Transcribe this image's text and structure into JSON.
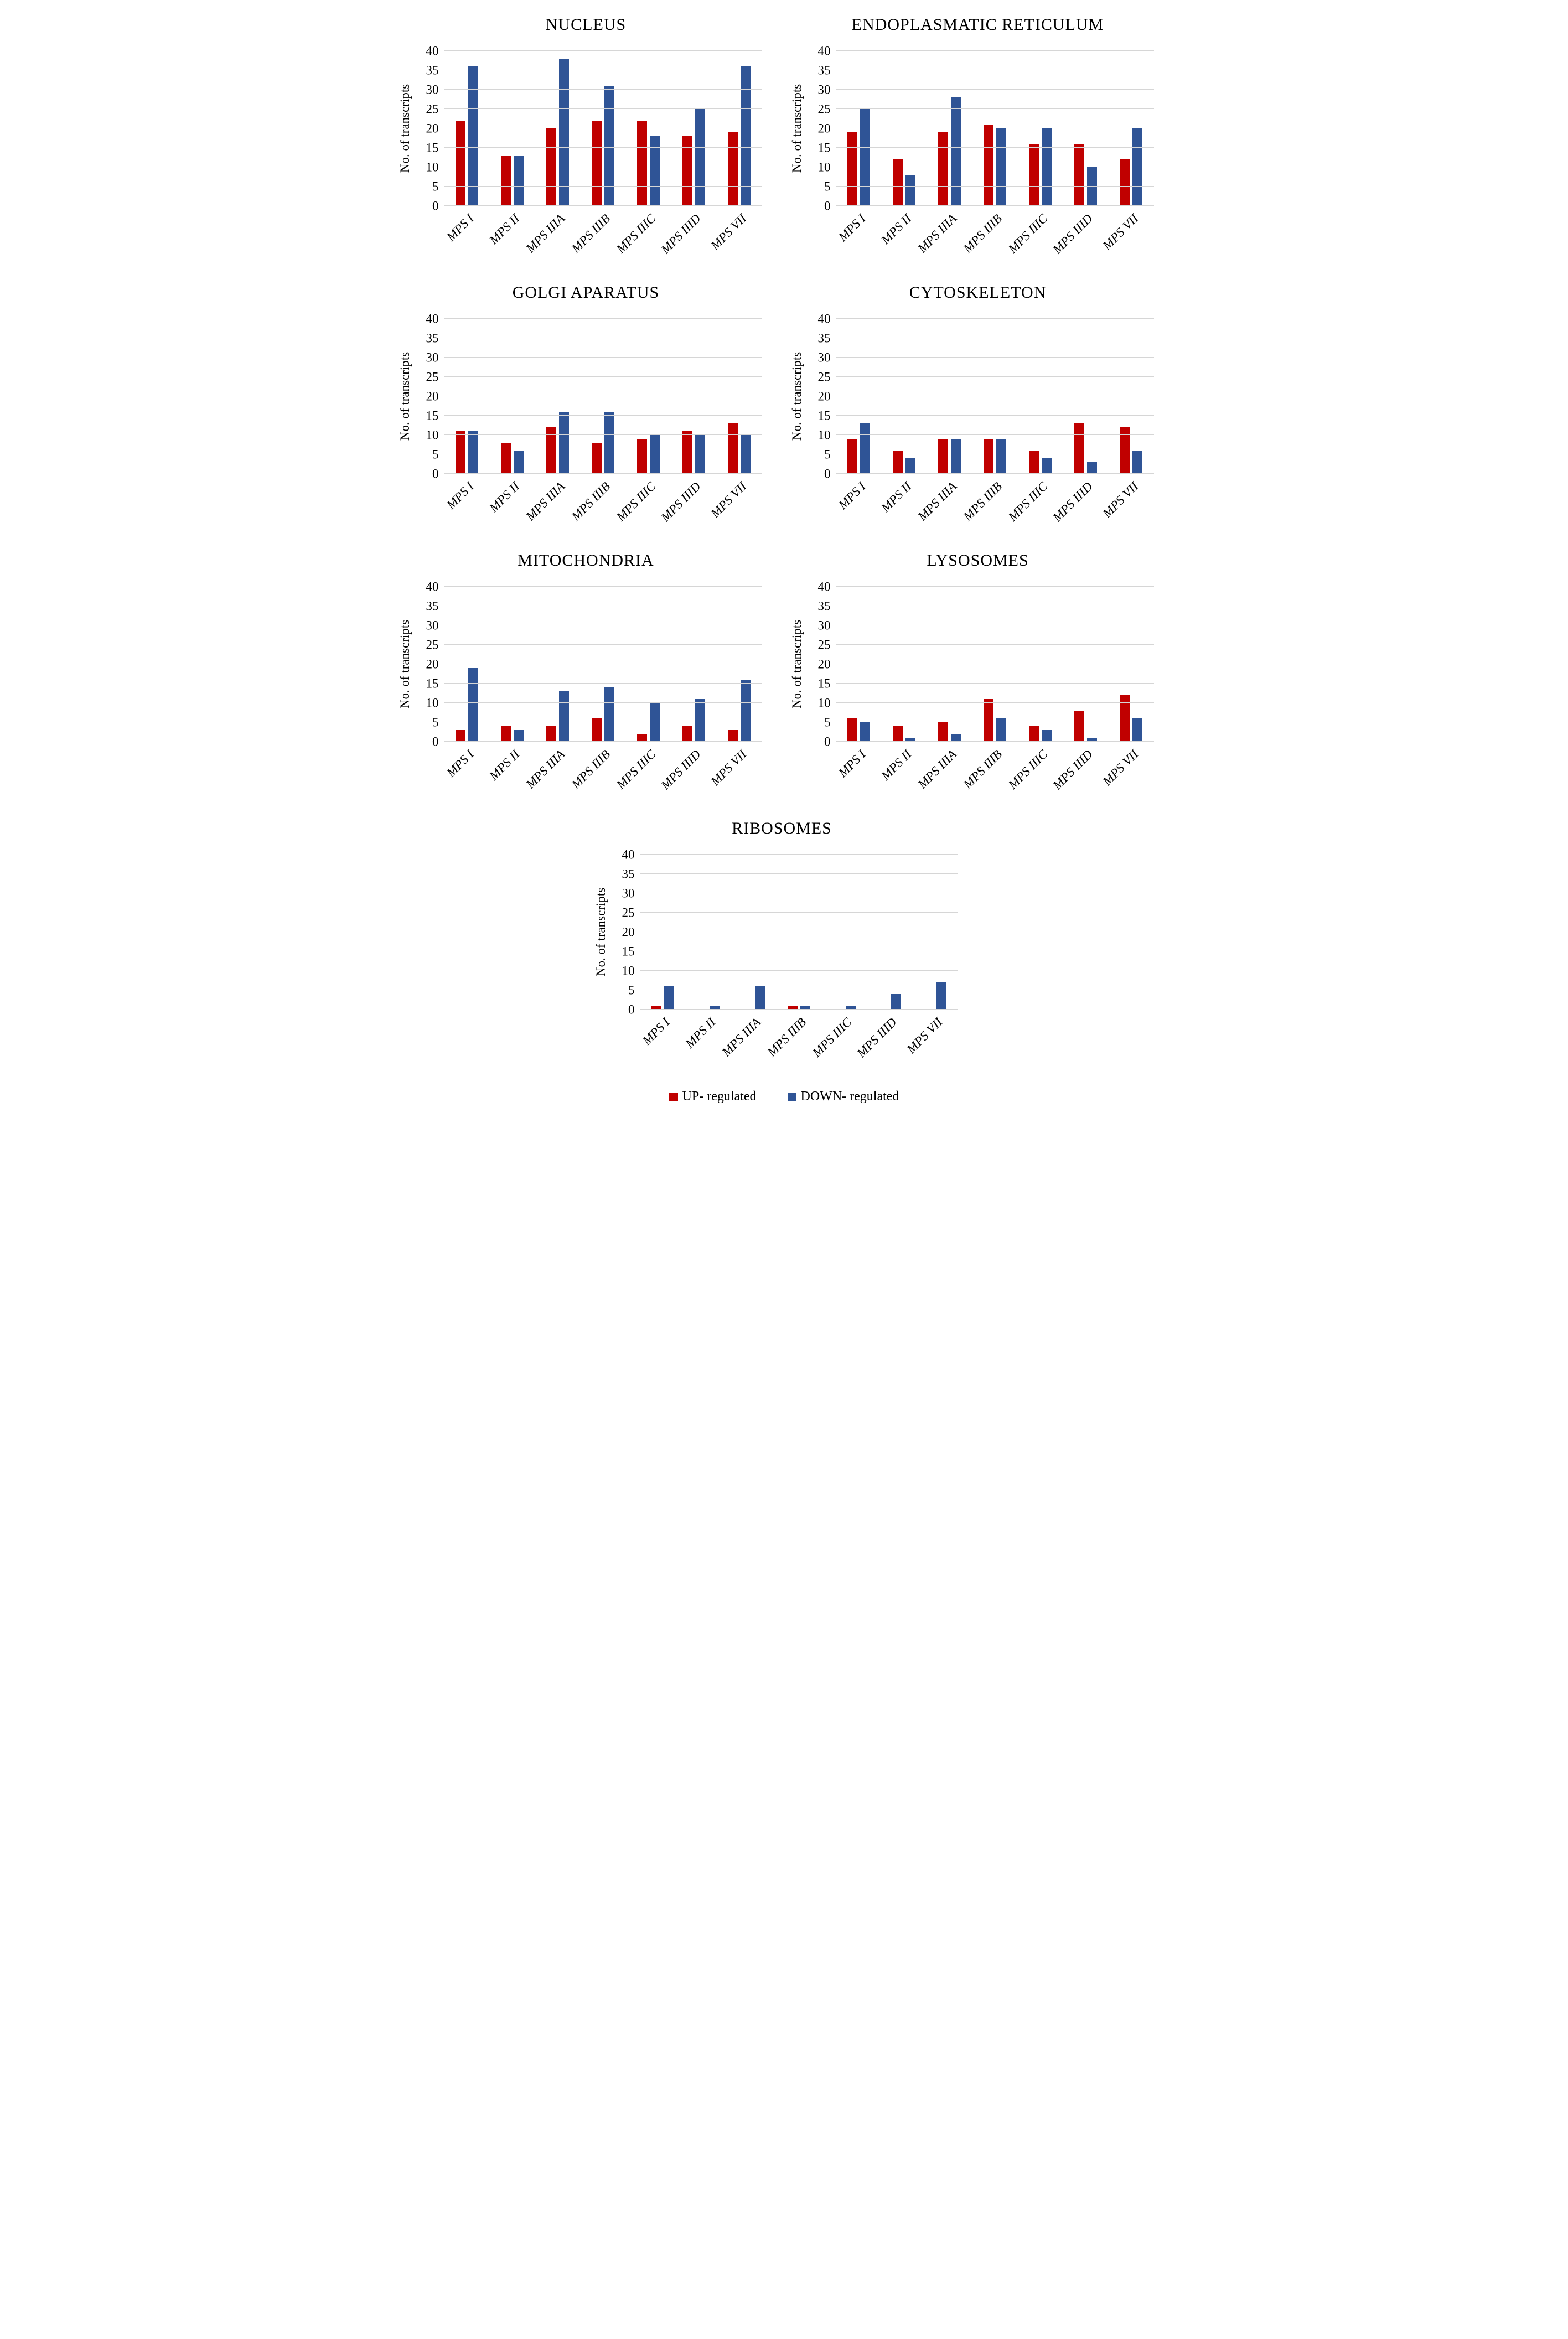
{
  "figure": {
    "legend": {
      "position": "bottom",
      "items": [
        {
          "label": "UP- regulated",
          "key": "up",
          "color": "#C00000"
        },
        {
          "label": "DOWN- regulated",
          "key": "down",
          "color": "#2F5496"
        }
      ]
    }
  },
  "chart_data": [
    {
      "type": "bar",
      "title": "NUCLEUS",
      "xlabel": "",
      "ylabel": "No. of transcripts",
      "ylim": [
        0,
        40
      ],
      "ytick_step": 5,
      "grid": true,
      "categories": [
        "MPS I",
        "MPS II",
        "MPS IIIA",
        "MPS IIIB",
        "MPS IIIC",
        "MPS IIID",
        "MPS VII"
      ],
      "series": [
        {
          "name": "UP- regulated",
          "key": "up",
          "color": "#C00000",
          "values": [
            22,
            13,
            20,
            22,
            22,
            18,
            19
          ]
        },
        {
          "name": "DOWN- regulated",
          "key": "down",
          "color": "#2F5496",
          "values": [
            36,
            13,
            38,
            31,
            18,
            25,
            36
          ]
        }
      ]
    },
    {
      "type": "bar",
      "title": "ENDOPLASMATIC RETICULUM",
      "xlabel": "",
      "ylabel": "No. of transcripts",
      "ylim": [
        0,
        40
      ],
      "ytick_step": 5,
      "grid": true,
      "categories": [
        "MPS I",
        "MPS II",
        "MPS IIIA",
        "MPS IIIB",
        "MPS IIIC",
        "MPS IIID",
        "MPS VII"
      ],
      "series": [
        {
          "name": "UP- regulated",
          "key": "up",
          "color": "#C00000",
          "values": [
            19,
            12,
            19,
            21,
            16,
            16,
            12
          ]
        },
        {
          "name": "DOWN- regulated",
          "key": "down",
          "color": "#2F5496",
          "values": [
            25,
            8,
            28,
            20,
            20,
            10,
            20
          ]
        }
      ]
    },
    {
      "type": "bar",
      "title": "GOLGI APARATUS",
      "xlabel": "",
      "ylabel": "No. of transcripts",
      "ylim": [
        0,
        40
      ],
      "ytick_step": 5,
      "grid": true,
      "categories": [
        "MPS I",
        "MPS II",
        "MPS IIIA",
        "MPS IIIB",
        "MPS IIIC",
        "MPS IIID",
        "MPS VII"
      ],
      "series": [
        {
          "name": "UP- regulated",
          "key": "up",
          "color": "#C00000",
          "values": [
            11,
            8,
            12,
            8,
            9,
            11,
            13
          ]
        },
        {
          "name": "DOWN- regulated",
          "key": "down",
          "color": "#2F5496",
          "values": [
            11,
            6,
            16,
            16,
            10,
            10,
            10
          ]
        }
      ]
    },
    {
      "type": "bar",
      "title": "CYTOSKELETON",
      "xlabel": "",
      "ylabel": "No. of transcripts",
      "ylim": [
        0,
        40
      ],
      "ytick_step": 5,
      "grid": true,
      "categories": [
        "MPS I",
        "MPS II",
        "MPS IIIA",
        "MPS IIIB",
        "MPS IIIC",
        "MPS IIID",
        "MPS VII"
      ],
      "series": [
        {
          "name": "UP- regulated",
          "key": "up",
          "color": "#C00000",
          "values": [
            9,
            6,
            9,
            9,
            6,
            13,
            12
          ]
        },
        {
          "name": "DOWN- regulated",
          "key": "down",
          "color": "#2F5496",
          "values": [
            13,
            4,
            9,
            9,
            4,
            3,
            6
          ]
        }
      ]
    },
    {
      "type": "bar",
      "title": "MITOCHONDRIA",
      "xlabel": "",
      "ylabel": "No. of transcripts",
      "ylim": [
        0,
        40
      ],
      "ytick_step": 5,
      "grid": true,
      "categories": [
        "MPS I",
        "MPS II",
        "MPS IIIA",
        "MPS IIIB",
        "MPS IIIC",
        "MPS IIID",
        "MPS VII"
      ],
      "series": [
        {
          "name": "UP- regulated",
          "key": "up",
          "color": "#C00000",
          "values": [
            3,
            4,
            4,
            6,
            2,
            4,
            3
          ]
        },
        {
          "name": "DOWN- regulated",
          "key": "down",
          "color": "#2F5496",
          "values": [
            19,
            3,
            13,
            14,
            10,
            11,
            16
          ]
        }
      ]
    },
    {
      "type": "bar",
      "title": "LYSOSOMES",
      "xlabel": "",
      "ylabel": "No. of transcripts",
      "ylim": [
        0,
        40
      ],
      "ytick_step": 5,
      "grid": true,
      "categories": [
        "MPS I",
        "MPS II",
        "MPS IIIA",
        "MPS IIIB",
        "MPS IIIC",
        "MPS IIID",
        "MPS VII"
      ],
      "series": [
        {
          "name": "UP- regulated",
          "key": "up",
          "color": "#C00000",
          "values": [
            6,
            4,
            5,
            11,
            4,
            8,
            12
          ]
        },
        {
          "name": "DOWN- regulated",
          "key": "down",
          "color": "#2F5496",
          "values": [
            5,
            1,
            2,
            6,
            3,
            1,
            6
          ]
        }
      ]
    },
    {
      "type": "bar",
      "title": "RIBOSOMES",
      "xlabel": "",
      "ylabel": "No. of transcripts",
      "ylim": [
        0,
        40
      ],
      "ytick_step": 5,
      "grid": true,
      "categories": [
        "MPS I",
        "MPS II",
        "MPS IIIA",
        "MPS IIIB",
        "MPS IIIC",
        "MPS IIID",
        "MPS VII"
      ],
      "series": [
        {
          "name": "UP- regulated",
          "key": "up",
          "color": "#C00000",
          "values": [
            1,
            0,
            0,
            1,
            0,
            0,
            0
          ]
        },
        {
          "name": "DOWN- regulated",
          "key": "down",
          "color": "#2F5496",
          "values": [
            6,
            1,
            6,
            1,
            1,
            4,
            7
          ]
        }
      ]
    }
  ]
}
